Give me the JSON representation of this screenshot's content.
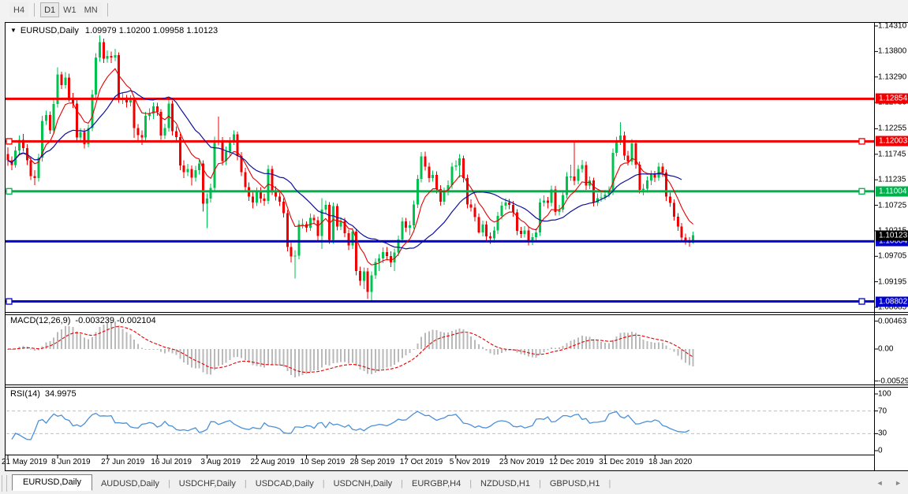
{
  "toolbar": {
    "buttons": [
      {
        "label": "H4",
        "active": false
      },
      {
        "label": "D1",
        "active": true
      },
      {
        "label": "W1",
        "active": false
      },
      {
        "label": "MN",
        "active": false
      }
    ]
  },
  "chart": {
    "symbol_title": "EURUSD,Daily",
    "ohlc_text": "1.09979 1.10200 1.09958 1.10123",
    "dropdown_icon": "▼"
  },
  "indicators": {
    "macd": {
      "label": "MACD(12,26,9)",
      "values_text": "-0.003239 -0.002104",
      "main_value": -0.003239,
      "signal_value": -0.002104,
      "fast": 12,
      "slow": 26,
      "signal": 9,
      "scale": [
        "0.00463",
        "0.00",
        "-0.005299"
      ],
      "hist_color": "#b9b9b9",
      "signal_color": "#e60000"
    },
    "rsi": {
      "label": "RSI(14)",
      "value_text": "34.9975",
      "period": 14,
      "value": 34.9975,
      "scale": [
        "100",
        "70",
        "30",
        "0"
      ],
      "levels": [
        30,
        70
      ],
      "line_color": "#4a90d8",
      "level_color": "#c0c0c0"
    }
  },
  "price_scale": {
    "ticks": [
      {
        "text": "1.14310",
        "price": 1.1431
      },
      {
        "text": "1.13800",
        "price": 1.138
      },
      {
        "text": "1.13290",
        "price": 1.1329
      },
      {
        "text": "1.12780",
        "price": 1.1278
      },
      {
        "text": "1.12255",
        "price": 1.12255
      },
      {
        "text": "1.11745",
        "price": 1.11745
      },
      {
        "text": "1.11235",
        "price": 1.11235
      },
      {
        "text": "1.10725",
        "price": 1.10725
      },
      {
        "text": "1.10215",
        "price": 1.10215
      },
      {
        "text": "1.09705",
        "price": 1.09705
      },
      {
        "text": "1.09195",
        "price": 1.09195
      },
      {
        "text": "1.08685",
        "price": 1.08685
      }
    ]
  },
  "chart_data": {
    "type": "candlestick",
    "symbol": "EURUSD",
    "timeframe": "Daily",
    "last_bar": {
      "open": 1.09979,
      "high": 1.102,
      "low": 1.09958,
      "close": 1.10123
    },
    "up_color": "#00c24e",
    "down_color": "#f20000",
    "ma_fast_color": "#e60000",
    "ma_slow_color": "#0f0f9d",
    "x_labels": [
      "21 May 2019",
      "8 Jun 2019",
      "27 Jun 2019",
      "16 Jul 2019",
      "3 Aug 2019",
      "22 Aug 2019",
      "10 Sep 2019",
      "28 Sep 2019",
      "17 Oct 2019",
      "5 Nov 2019",
      "23 Nov 2019",
      "12 Dec 2019",
      "31 Dec 2019",
      "18 Jan 2020"
    ],
    "hlines": [
      {
        "price": 1.12854,
        "color": "#f00000",
        "label": "1.12854",
        "selected": false
      },
      {
        "price": 1.12003,
        "color": "#f00000",
        "label": "1.12003",
        "selected": true
      },
      {
        "price": 1.11004,
        "color": "#00b04c",
        "label": "1.11004",
        "selected": true
      },
      {
        "price": 1.10004,
        "color": "#0000cd",
        "label": "1.10004",
        "selected": false
      },
      {
        "price": 1.08802,
        "color": "#0000cd",
        "label": "1.08802",
        "selected": true
      }
    ],
    "current_price": {
      "text": "1.10123",
      "price": 1.10123,
      "bg": "#000000"
    },
    "candles": [
      [
        1.1175,
        1.1188,
        1.1151,
        1.1162
      ],
      [
        1.1162,
        1.117,
        1.1143,
        1.1153
      ],
      [
        1.1153,
        1.119,
        1.1147,
        1.1182
      ],
      [
        1.1182,
        1.1212,
        1.1175,
        1.1203
      ],
      [
        1.1203,
        1.1215,
        1.118,
        1.1187
      ],
      [
        1.1187,
        1.1195,
        1.1153,
        1.1162
      ],
      [
        1.1162,
        1.117,
        1.1123,
        1.1131
      ],
      [
        1.1131,
        1.1143,
        1.1113,
        1.1127
      ],
      [
        1.1127,
        1.1176,
        1.112,
        1.1168
      ],
      [
        1.1168,
        1.1251,
        1.116,
        1.1241
      ],
      [
        1.1241,
        1.1262,
        1.1233,
        1.1253
      ],
      [
        1.1253,
        1.126,
        1.1215,
        1.1222
      ],
      [
        1.1222,
        1.1283,
        1.1216,
        1.1275
      ],
      [
        1.1275,
        1.1348,
        1.1268,
        1.1334
      ],
      [
        1.1334,
        1.134,
        1.1305,
        1.1313
      ],
      [
        1.1313,
        1.1339,
        1.1306,
        1.1328
      ],
      [
        1.1328,
        1.1336,
        1.128,
        1.1288
      ],
      [
        1.1288,
        1.1297,
        1.1267,
        1.1276
      ],
      [
        1.1276,
        1.1283,
        1.12,
        1.1208
      ],
      [
        1.1208,
        1.1227,
        1.1201,
        1.1219
      ],
      [
        1.1219,
        1.1226,
        1.1186,
        1.1195
      ],
      [
        1.1195,
        1.1234,
        1.1188,
        1.1227
      ],
      [
        1.1227,
        1.1303,
        1.1221,
        1.1294
      ],
      [
        1.1294,
        1.1377,
        1.1287,
        1.1368
      ],
      [
        1.1368,
        1.1412,
        1.1359,
        1.1399
      ],
      [
        1.1399,
        1.1406,
        1.1357,
        1.1366
      ],
      [
        1.1366,
        1.1382,
        1.1358,
        1.1371
      ],
      [
        1.1371,
        1.138,
        1.1357,
        1.1368
      ],
      [
        1.1368,
        1.1385,
        1.1361,
        1.1373
      ],
      [
        1.1373,
        1.1378,
        1.1277,
        1.1285
      ],
      [
        1.1285,
        1.1296,
        1.1275,
        1.1287
      ],
      [
        1.1287,
        1.1293,
        1.1268,
        1.1278
      ],
      [
        1.1278,
        1.1292,
        1.127,
        1.1283
      ],
      [
        1.1283,
        1.1289,
        1.1207,
        1.1227
      ],
      [
        1.1227,
        1.1235,
        1.1202,
        1.1213
      ],
      [
        1.1213,
        1.1222,
        1.1193,
        1.1208
      ],
      [
        1.1208,
        1.1259,
        1.12,
        1.1251
      ],
      [
        1.1251,
        1.1266,
        1.1243,
        1.1255
      ],
      [
        1.1255,
        1.1278,
        1.1245,
        1.127
      ],
      [
        1.127,
        1.1277,
        1.1251,
        1.1259
      ],
      [
        1.1259,
        1.1265,
        1.1203,
        1.1212
      ],
      [
        1.1212,
        1.1236,
        1.1205,
        1.1227
      ],
      [
        1.1227,
        1.1285,
        1.122,
        1.1276
      ],
      [
        1.1276,
        1.1282,
        1.1212,
        1.1221
      ],
      [
        1.1221,
        1.123,
        1.1199,
        1.1209
      ],
      [
        1.1209,
        1.1215,
        1.1143,
        1.1152
      ],
      [
        1.1152,
        1.1162,
        1.1127,
        1.1139
      ],
      [
        1.1139,
        1.1155,
        1.1131,
        1.1145
      ],
      [
        1.1145,
        1.1152,
        1.1112,
        1.1128
      ],
      [
        1.1128,
        1.1151,
        1.112,
        1.1143
      ],
      [
        1.1143,
        1.1163,
        1.1134,
        1.1156
      ],
      [
        1.1156,
        1.1162,
        1.106,
        1.1076
      ],
      [
        1.1076,
        1.1096,
        1.1027,
        1.1086
      ],
      [
        1.1086,
        1.1116,
        1.1078,
        1.1107
      ],
      [
        1.1107,
        1.121,
        1.11,
        1.1202
      ],
      [
        1.1202,
        1.125,
        1.1192,
        1.12
      ],
      [
        1.12,
        1.1209,
        1.1152,
        1.1161
      ],
      [
        1.1161,
        1.119,
        1.1153,
        1.118
      ],
      [
        1.118,
        1.1209,
        1.117,
        1.12
      ],
      [
        1.12,
        1.1222,
        1.1193,
        1.1214
      ],
      [
        1.1214,
        1.122,
        1.1162,
        1.1171
      ],
      [
        1.1171,
        1.1179,
        1.1131,
        1.1139
      ],
      [
        1.1139,
        1.1147,
        1.11,
        1.1109
      ],
      [
        1.1109,
        1.1118,
        1.1081,
        1.109
      ],
      [
        1.109,
        1.1099,
        1.1066,
        1.1078
      ],
      [
        1.1078,
        1.1108,
        1.1071,
        1.11
      ],
      [
        1.11,
        1.1109,
        1.1077,
        1.1086
      ],
      [
        1.1086,
        1.1095,
        1.1072,
        1.1081
      ],
      [
        1.1081,
        1.1153,
        1.1075,
        1.1145
      ],
      [
        1.1145,
        1.1151,
        1.1093,
        1.1101
      ],
      [
        1.1101,
        1.111,
        1.1082,
        1.109
      ],
      [
        1.109,
        1.1098,
        1.1071,
        1.108
      ],
      [
        1.108,
        1.1087,
        1.1048,
        1.1057
      ],
      [
        1.1057,
        1.1063,
        1.098,
        1.0989
      ],
      [
        1.0989,
        1.0998,
        1.0958,
        1.097
      ],
      [
        1.097,
        1.0983,
        1.0926,
        1.0972
      ],
      [
        1.0972,
        1.1043,
        1.0965,
        1.1035
      ],
      [
        1.1035,
        1.1046,
        1.1026,
        1.1035
      ],
      [
        1.1035,
        1.104,
        1.1019,
        1.1028
      ],
      [
        1.1028,
        1.1056,
        1.1021,
        1.1047
      ],
      [
        1.1047,
        1.1054,
        1.1035,
        1.1043
      ],
      [
        1.1043,
        1.105,
        1.1002,
        1.1011
      ],
      [
        1.1011,
        1.1087,
        1.0985,
        1.1064
      ],
      [
        1.1064,
        1.1082,
        1.1056,
        1.1073
      ],
      [
        1.1073,
        1.1079,
        1.0995,
        1.1003
      ],
      [
        1.1003,
        1.1078,
        1.0996,
        1.1071
      ],
      [
        1.1071,
        1.1076,
        1.1022,
        1.103
      ],
      [
        1.103,
        1.1049,
        1.1023,
        1.1041
      ],
      [
        1.1041,
        1.1047,
        1.1009,
        1.1017
      ],
      [
        1.1017,
        1.1024,
        1.0983,
        1.0992
      ],
      [
        1.0992,
        1.1027,
        1.0985,
        1.102
      ],
      [
        1.102,
        1.1025,
        1.0932,
        1.0941
      ],
      [
        1.0941,
        1.095,
        1.0912,
        1.0921
      ],
      [
        1.0921,
        1.0948,
        1.0905,
        1.094
      ],
      [
        1.094,
        1.0947,
        1.0885,
        1.0899
      ],
      [
        1.0899,
        1.094,
        1.0879,
        1.0932
      ],
      [
        1.0932,
        1.0966,
        1.0925,
        1.0959
      ],
      [
        1.0959,
        1.0975,
        1.0941,
        1.0966
      ],
      [
        1.0966,
        1.0988,
        1.0957,
        1.0979
      ],
      [
        1.0979,
        1.0989,
        1.0962,
        1.0971
      ],
      [
        1.0971,
        1.098,
        1.0949,
        1.0958
      ],
      [
        1.0958,
        1.0986,
        1.0941,
        1.0978
      ],
      [
        1.0978,
        1.1012,
        1.0971,
        1.1004
      ],
      [
        1.1004,
        1.1048,
        1.0997,
        1.104
      ],
      [
        1.104,
        1.1047,
        1.1019,
        1.1028
      ],
      [
        1.1028,
        1.1041,
        1.1013,
        1.1032
      ],
      [
        1.1032,
        1.1082,
        1.1025,
        1.1074
      ],
      [
        1.1074,
        1.1133,
        1.1067,
        1.1125
      ],
      [
        1.1125,
        1.1179,
        1.1118,
        1.117
      ],
      [
        1.117,
        1.118,
        1.1142,
        1.115
      ],
      [
        1.115,
        1.1158,
        1.1118,
        1.1127
      ],
      [
        1.1127,
        1.1142,
        1.112,
        1.1133
      ],
      [
        1.1133,
        1.114,
        1.1096,
        1.1105
      ],
      [
        1.1105,
        1.1113,
        1.1072,
        1.108
      ],
      [
        1.108,
        1.1108,
        1.1073,
        1.11
      ],
      [
        1.11,
        1.1122,
        1.1092,
        1.1113
      ],
      [
        1.1113,
        1.1158,
        1.1106,
        1.115
      ],
      [
        1.115,
        1.1162,
        1.1142,
        1.1152
      ],
      [
        1.1152,
        1.1175,
        1.1128,
        1.1166
      ],
      [
        1.1166,
        1.1172,
        1.1118,
        1.1127
      ],
      [
        1.1127,
        1.1134,
        1.1066,
        1.1074
      ],
      [
        1.1074,
        1.1084,
        1.106,
        1.1068
      ],
      [
        1.1068,
        1.1076,
        1.104,
        1.1049
      ],
      [
        1.1049,
        1.1056,
        1.1016,
        1.1018
      ],
      [
        1.1018,
        1.1042,
        1.101,
        1.1034
      ],
      [
        1.1034,
        1.1041,
        1.1002,
        1.101
      ],
      [
        1.101,
        1.1018,
        1.0995,
        1.1006
      ],
      [
        1.1006,
        1.103,
        1.0998,
        1.1022
      ],
      [
        1.1022,
        1.1059,
        1.1015,
        1.1051
      ],
      [
        1.1051,
        1.108,
        1.1044,
        1.1072
      ],
      [
        1.1072,
        1.1087,
        1.1064,
        1.1078
      ],
      [
        1.1078,
        1.1085,
        1.1065,
        1.1073
      ],
      [
        1.1073,
        1.1081,
        1.105,
        1.1058
      ],
      [
        1.1058,
        1.1065,
        1.1013,
        1.1021
      ],
      [
        1.1021,
        1.1029,
        1.1007,
        1.1015
      ],
      [
        1.1015,
        1.1031,
        1.1008,
        1.1022
      ],
      [
        1.1022,
        1.1029,
        1.0992,
        1.1
      ],
      [
        1.1,
        1.1017,
        1.0993,
        1.1009
      ],
      [
        1.1009,
        1.1026,
        1.1002,
        1.1018
      ],
      [
        1.1018,
        1.1086,
        1.1011,
        1.1078
      ],
      [
        1.1078,
        1.1092,
        1.107,
        1.1082
      ],
      [
        1.1082,
        1.1089,
        1.1066,
        1.1077
      ],
      [
        1.1077,
        1.1112,
        1.107,
        1.1104
      ],
      [
        1.1104,
        1.1111,
        1.1052,
        1.1059
      ],
      [
        1.1059,
        1.1073,
        1.1052,
        1.1064
      ],
      [
        1.1064,
        1.1101,
        1.1058,
        1.1093
      ],
      [
        1.1093,
        1.1139,
        1.1086,
        1.113
      ],
      [
        1.113,
        1.1154,
        1.1121,
        1.113
      ],
      [
        1.113,
        1.1199,
        1.1113,
        1.1121
      ],
      [
        1.1121,
        1.1153,
        1.1114,
        1.1145
      ],
      [
        1.1145,
        1.1163,
        1.1138,
        1.1153
      ],
      [
        1.1153,
        1.116,
        1.1103,
        1.1112
      ],
      [
        1.1112,
        1.113,
        1.1105,
        1.1122
      ],
      [
        1.1122,
        1.1128,
        1.107,
        1.1078
      ],
      [
        1.1078,
        1.1096,
        1.1071,
        1.1087
      ],
      [
        1.1087,
        1.1098,
        1.108,
        1.1088
      ],
      [
        1.1088,
        1.1103,
        1.1083,
        1.1094
      ],
      [
        1.1094,
        1.111,
        1.1088,
        1.11
      ],
      [
        1.11,
        1.1186,
        1.1093,
        1.1177
      ],
      [
        1.1177,
        1.121,
        1.117,
        1.1199
      ],
      [
        1.1199,
        1.1239,
        1.1193,
        1.1212
      ],
      [
        1.1212,
        1.122,
        1.1163,
        1.1172
      ],
      [
        1.1172,
        1.1181,
        1.1152,
        1.116
      ],
      [
        1.116,
        1.1205,
        1.1153,
        1.1196
      ],
      [
        1.1196,
        1.1202,
        1.1146,
        1.1154
      ],
      [
        1.1154,
        1.116,
        1.1096,
        1.1103
      ],
      [
        1.1103,
        1.1115,
        1.1092,
        1.1106
      ],
      [
        1.1106,
        1.113,
        1.1098,
        1.1122
      ],
      [
        1.1122,
        1.1142,
        1.1113,
        1.1134
      ],
      [
        1.1134,
        1.1141,
        1.1119,
        1.1128
      ],
      [
        1.1128,
        1.1158,
        1.1121,
        1.115
      ],
      [
        1.115,
        1.1157,
        1.1129,
        1.1138
      ],
      [
        1.1138,
        1.1144,
        1.1081,
        1.109
      ],
      [
        1.109,
        1.1098,
        1.1069,
        1.1077
      ],
      [
        1.1077,
        1.1084,
        1.1042,
        1.105
      ],
      [
        1.105,
        1.1057,
        1.1021,
        1.103
      ],
      [
        1.103,
        1.1037,
        1.1,
        1.1008
      ],
      [
        1.1008,
        1.1016,
        1.0994,
        1.1002
      ],
      [
        1.1002,
        1.1009,
        1.099,
        1.0998
      ],
      [
        1.09979,
        1.102,
        1.09958,
        1.10123
      ]
    ]
  },
  "tabs": [
    {
      "label": "EURUSD,Daily",
      "active": true
    },
    {
      "label": "AUDUSD,Daily",
      "active": false
    },
    {
      "label": "USDCHF,Daily",
      "active": false
    },
    {
      "label": "USDCAD,Daily",
      "active": false
    },
    {
      "label": "USDCNH,Daily",
      "active": false
    },
    {
      "label": "EURGBP,H4",
      "active": false
    },
    {
      "label": "NZDUSD,H1",
      "active": false
    },
    {
      "label": "GBPUSD,H1",
      "active": false
    }
  ],
  "tab_scroll": {
    "left_icon": "◄",
    "right_icon": "►"
  }
}
